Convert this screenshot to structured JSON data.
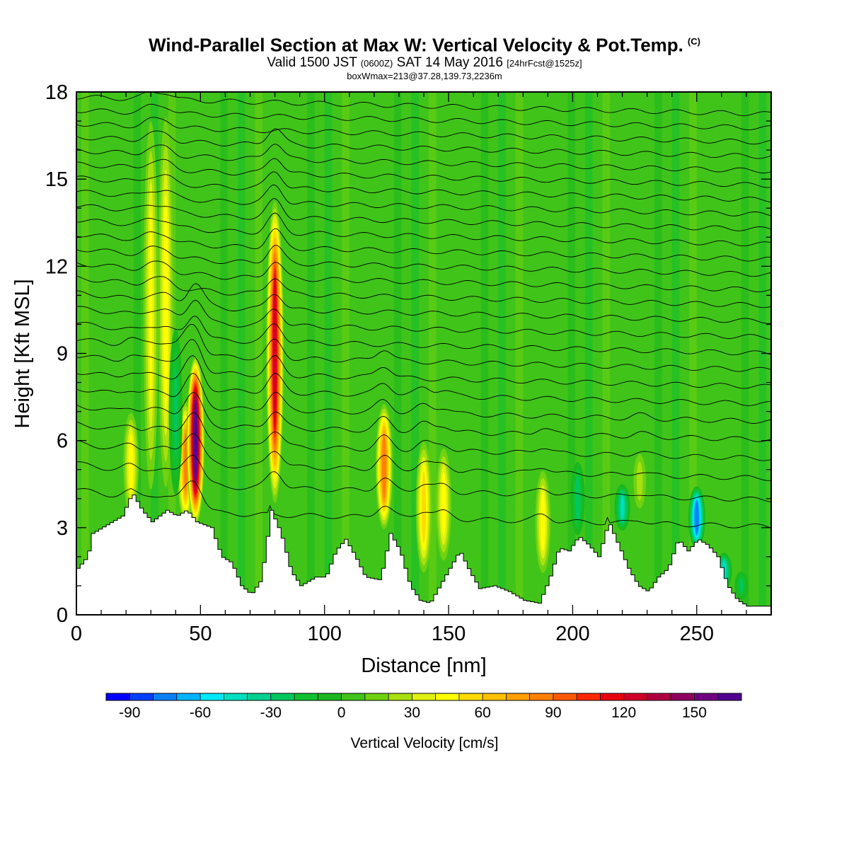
{
  "titles": {
    "main": "Wind-Parallel Section at Max W: Vertical Velocity & Pot.Temp.",
    "copyright": "(C)",
    "valid_prefix": "Valid 1500 JST",
    "utc_time": "(0600Z)",
    "valid_date": "SAT 14 May 2016",
    "forecast": "[24hrFcst@1525z]",
    "box_info": "boxWmax=213@37.28,139.73,2236m"
  },
  "chart_data": {
    "type": "heatmap",
    "xlabel": "Distance [nm]",
    "ylabel": "Height [Kft MSL]",
    "xlim": [
      0,
      280
    ],
    "ylim": [
      0,
      18
    ],
    "x_ticks": [
      0,
      50,
      100,
      150,
      200,
      250
    ],
    "y_ticks": [
      0,
      3,
      6,
      9,
      12,
      15,
      18
    ],
    "background_value": 0,
    "terrain": {
      "x": [
        0,
        4,
        6,
        10,
        18,
        22,
        26,
        30,
        36,
        40,
        44,
        48,
        54,
        58,
        62,
        66,
        70,
        74,
        78,
        82,
        86,
        90,
        96,
        100,
        104,
        108,
        112,
        116,
        122,
        126,
        130,
        134,
        138,
        142,
        148,
        154,
        158,
        162,
        168,
        174,
        180,
        186,
        190,
        194,
        198,
        202,
        206,
        210,
        214,
        218,
        222,
        226,
        230,
        234,
        238,
        242,
        246,
        250,
        254,
        258,
        262,
        266,
        270,
        274,
        280
      ],
      "height": [
        1.6,
        2.0,
        2.8,
        3.0,
        3.4,
        4.2,
        3.6,
        3.2,
        3.6,
        3.4,
        3.6,
        3.2,
        3.0,
        2.0,
        1.8,
        1.0,
        0.7,
        1.2,
        3.6,
        2.8,
        1.5,
        1.0,
        1.3,
        1.3,
        2.2,
        2.6,
        2.0,
        1.3,
        1.2,
        2.8,
        2.2,
        1.0,
        0.5,
        0.4,
        1.3,
        2.2,
        1.5,
        0.9,
        1.0,
        0.8,
        0.5,
        0.4,
        1.2,
        2.3,
        2.2,
        2.7,
        2.4,
        2.0,
        3.2,
        2.4,
        1.6,
        1.0,
        0.8,
        1.3,
        1.6,
        2.6,
        2.2,
        2.6,
        2.4,
        2.0,
        1.0,
        0.5,
        0.3,
        0.3,
        0.3
      ]
    },
    "updrafts": [
      {
        "x": 22,
        "z0": 3.2,
        "z1": 7.2,
        "w": 45
      },
      {
        "x": 30,
        "z0": 3.3,
        "z1": 18,
        "w": 40
      },
      {
        "x": 36,
        "z0": 3.5,
        "z1": 18,
        "w": 45
      },
      {
        "x": 44,
        "z0": 3.0,
        "z1": 7.5,
        "w": 80
      },
      {
        "x": 48,
        "z0": 3.0,
        "z1": 9.0,
        "w": 160
      },
      {
        "x": 80,
        "z0": 3.6,
        "z1": 14.5,
        "w": 120
      },
      {
        "x": 124,
        "z0": 2.8,
        "z1": 7.4,
        "w": 85
      },
      {
        "x": 140,
        "z0": 1.2,
        "z1": 6.2,
        "w": 55
      },
      {
        "x": 148,
        "z0": 1.6,
        "z1": 6.0,
        "w": 45
      },
      {
        "x": 188,
        "z0": 1.2,
        "z1": 5.2,
        "w": 45
      },
      {
        "x": 227,
        "z0": 3.4,
        "z1": 5.8,
        "w": 25
      }
    ],
    "downdrafts": [
      {
        "x": 40,
        "z0": 3.5,
        "z1": 10.5,
        "w": -30
      },
      {
        "x": 202,
        "z0": 2.5,
        "z1": 5.5,
        "w": -35
      },
      {
        "x": 220,
        "z0": 2.8,
        "z1": 4.6,
        "w": -50
      },
      {
        "x": 250,
        "z0": 2.2,
        "z1": 4.5,
        "w": -85
      },
      {
        "x": 261,
        "z0": 0.8,
        "z1": 2.2,
        "w": -55
      },
      {
        "x": 268,
        "z0": 0.4,
        "z1": 1.6,
        "w": -30
      }
    ],
    "isentropes": {
      "count": 26,
      "bottom_height": 3.6,
      "top_height": 17.8,
      "description": "Potential temperature contours"
    },
    "colorbar": {
      "label": "Vertical Velocity [cm/s]",
      "tick_values": [
        -90,
        -60,
        -30,
        0,
        30,
        60,
        90,
        120,
        150
      ],
      "tick_labels": [
        "-90",
        "-60",
        "-30",
        "0",
        "30",
        "60",
        "90",
        "120",
        "150"
      ],
      "min": -100,
      "max": 170,
      "step": 10,
      "colors": [
        "#0000ff",
        "#0040ff",
        "#0a80f5",
        "#00b4ff",
        "#00eaff",
        "#00e0c0",
        "#00d090",
        "#00c860",
        "#10c030",
        "#1ab81e",
        "#40c41a",
        "#70d210",
        "#a8e010",
        "#e0f010",
        "#ffff00",
        "#ffdc00",
        "#ffc000",
        "#ffa000",
        "#ff8000",
        "#ff5a00",
        "#ff2800",
        "#e80010",
        "#d00028",
        "#b00040",
        "#900060",
        "#700080",
        "#500090"
      ]
    }
  }
}
